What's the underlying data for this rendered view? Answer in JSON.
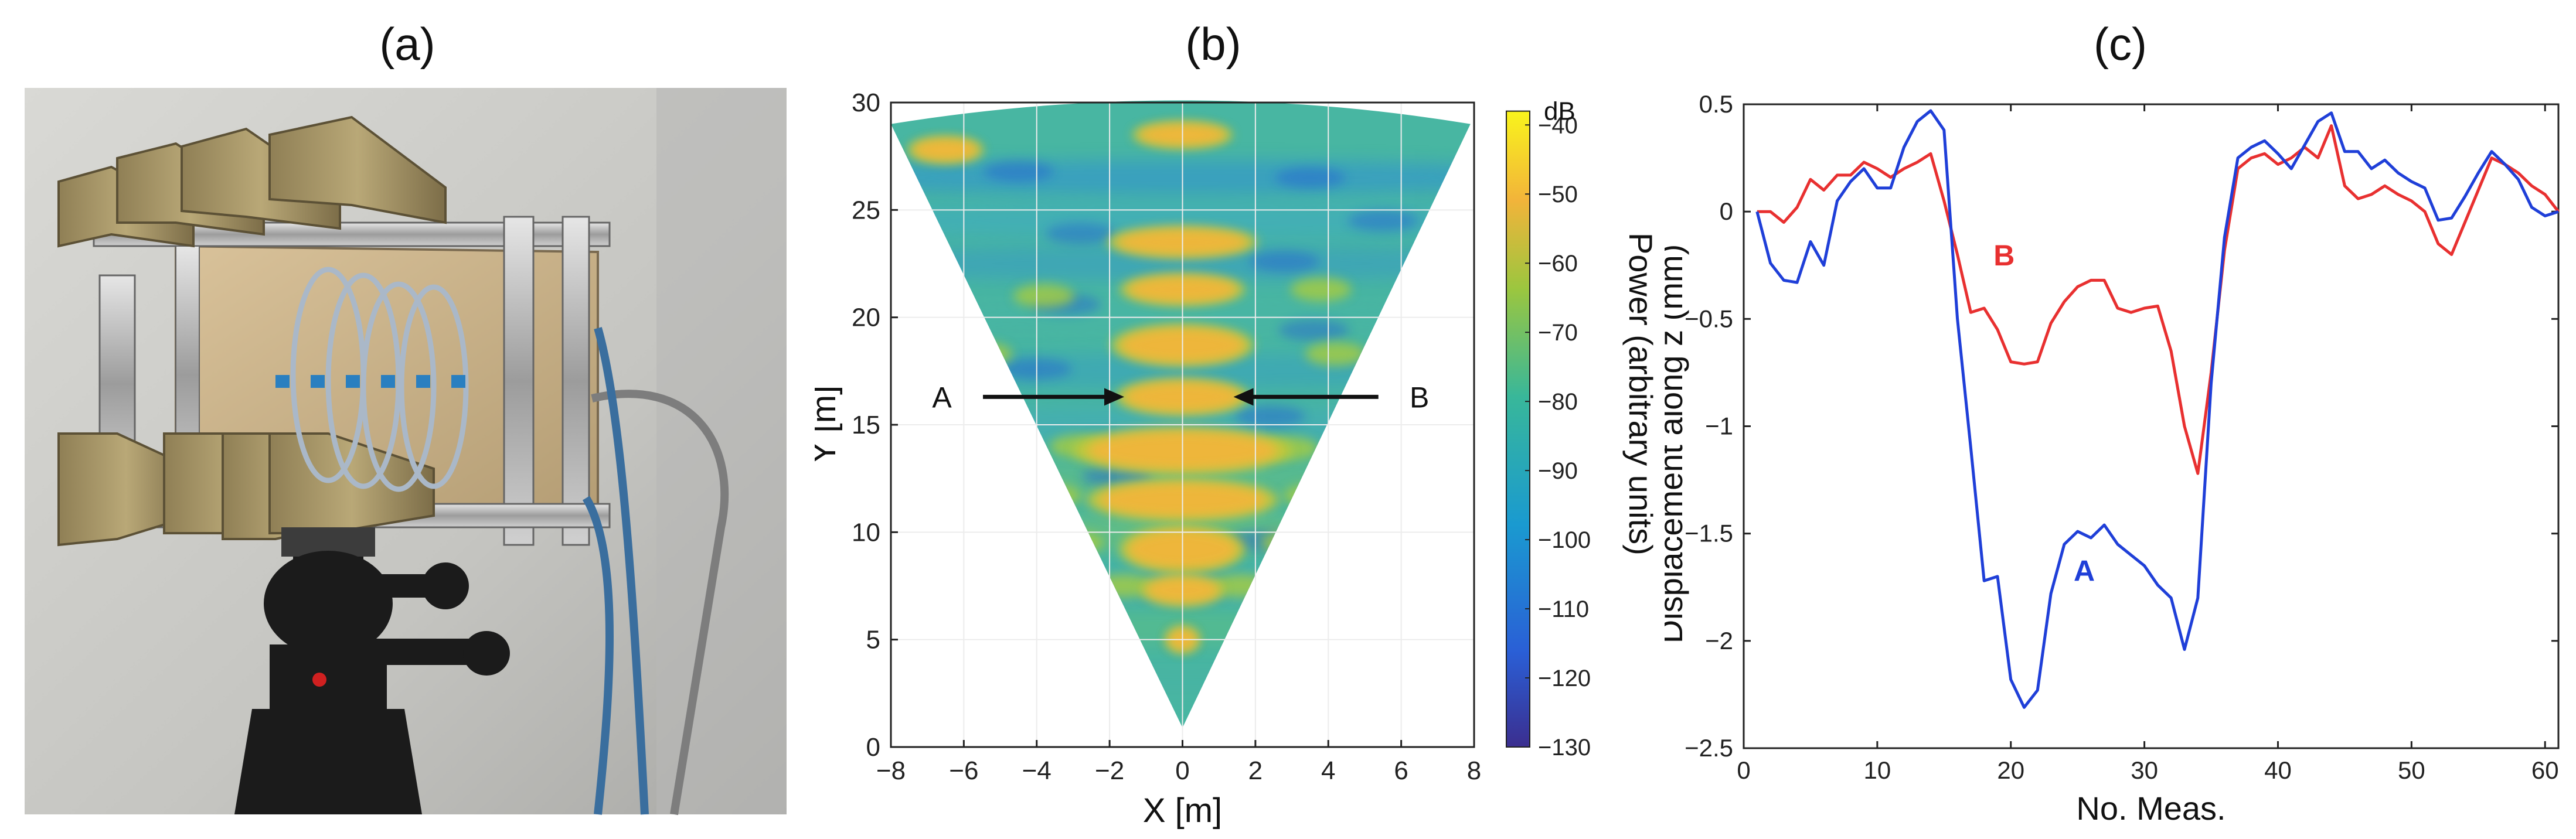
{
  "panels": {
    "a": "(a)",
    "b": "(b)",
    "c": "(c)"
  },
  "photo": {
    "description_name": "radar-sensor-photo"
  },
  "chart_data": [
    {
      "type": "heatmap",
      "title": "(b)",
      "xlabel": "X [m]",
      "ylabel": "Y [m]",
      "xlim": [
        -8,
        8
      ],
      "ylim": [
        0,
        30
      ],
      "xticks": [
        -8,
        -6,
        -4,
        -2,
        0,
        2,
        4,
        6,
        8
      ],
      "yticks": [
        0,
        5,
        10,
        15,
        20,
        25,
        30
      ],
      "colorbar": {
        "label": "Power (arbitrary units)",
        "unit": "dB",
        "range": [
          -130,
          -38
        ],
        "ticks": [
          -40,
          -50,
          -60,
          -70,
          -80,
          -90,
          -100,
          -110,
          -120,
          -130
        ]
      },
      "annotations": [
        {
          "text": "A",
          "x": -6.6,
          "y": 16.3,
          "arrow_to": [
            -1.6,
            16.3
          ]
        },
        {
          "text": "B",
          "x": 6.5,
          "y": 16.3,
          "arrow_to": [
            1.4,
            16.3
          ]
        }
      ],
      "hot_spots": [
        {
          "x": 0,
          "y": 28.5,
          "rx": 1.2,
          "ry": 0.5
        },
        {
          "x": -6.5,
          "y": 27.8,
          "rx": 0.9,
          "ry": 0.5
        },
        {
          "x": 0,
          "y": 23.5,
          "rx": 1.8,
          "ry": 0.6
        },
        {
          "x": 0,
          "y": 21.3,
          "rx": 1.5,
          "ry": 0.6
        },
        {
          "x": 0,
          "y": 18.7,
          "rx": 1.7,
          "ry": 0.8
        },
        {
          "x": 0,
          "y": 16.3,
          "rx": 1.6,
          "ry": 0.7
        },
        {
          "x": 0,
          "y": 13.8,
          "rx": 2.6,
          "ry": 0.9
        },
        {
          "x": 0,
          "y": 11.5,
          "rx": 2.3,
          "ry": 0.8
        },
        {
          "x": 0,
          "y": 9.2,
          "rx": 1.5,
          "ry": 0.9
        },
        {
          "x": 0,
          "y": 7.3,
          "rx": 1.0,
          "ry": 0.6
        },
        {
          "x": 0,
          "y": 5.0,
          "rx": 0.4,
          "ry": 0.5
        }
      ]
    },
    {
      "type": "line",
      "title": "(c)",
      "xlabel": "No. Meas.",
      "ylabel": "Displacement along z (mm)",
      "xlim": [
        0,
        61
      ],
      "ylim": [
        -2.5,
        0.5
      ],
      "xticks": [
        0,
        10,
        20,
        30,
        40,
        50,
        60
      ],
      "yticks": [
        0.5,
        0,
        -0.5,
        -1,
        -1.5,
        -2,
        -2.5
      ],
      "series": [
        {
          "name": "A",
          "color": "#1f3fd8",
          "label_at": [
            25.5,
            -1.72
          ],
          "x": [
            1,
            2,
            3,
            4,
            5,
            6,
            7,
            8,
            9,
            10,
            11,
            12,
            13,
            14,
            15,
            16,
            17,
            18,
            19,
            20,
            21,
            22,
            23,
            24,
            25,
            26,
            27,
            28,
            29,
            30,
            31,
            32,
            33,
            34,
            35,
            36,
            37,
            38,
            39,
            40,
            41,
            42,
            43,
            44,
            45,
            46,
            47,
            48,
            49,
            50,
            51,
            52,
            53,
            54,
            55,
            56,
            57,
            58,
            59,
            60,
            61
          ],
          "y": [
            0.0,
            -0.24,
            -0.32,
            -0.33,
            -0.14,
            -0.25,
            0.05,
            0.14,
            0.2,
            0.11,
            0.11,
            0.3,
            0.42,
            0.47,
            0.38,
            -0.5,
            -1.1,
            -1.72,
            -1.7,
            -2.18,
            -2.31,
            -2.23,
            -1.78,
            -1.55,
            -1.49,
            -1.52,
            -1.46,
            -1.55,
            -1.6,
            -1.65,
            -1.74,
            -1.8,
            -2.04,
            -1.8,
            -0.8,
            -0.12,
            0.25,
            0.3,
            0.33,
            0.27,
            0.2,
            0.31,
            0.42,
            0.46,
            0.28,
            0.28,
            0.2,
            0.24,
            0.18,
            0.14,
            0.11,
            -0.04,
            -0.03,
            0.07,
            0.18,
            0.28,
            0.22,
            0.15,
            0.02,
            -0.02,
            0.0
          ]
        },
        {
          "name": "B",
          "color": "#e83030",
          "label_at": [
            19.5,
            -0.25
          ],
          "x": [
            1,
            2,
            3,
            4,
            5,
            6,
            7,
            8,
            9,
            10,
            11,
            12,
            13,
            14,
            15,
            16,
            17,
            18,
            19,
            20,
            21,
            22,
            23,
            24,
            25,
            26,
            27,
            28,
            29,
            30,
            31,
            32,
            33,
            34,
            35,
            36,
            37,
            38,
            39,
            40,
            41,
            42,
            43,
            44,
            45,
            46,
            47,
            48,
            49,
            50,
            51,
            52,
            53,
            54,
            55,
            56,
            57,
            58,
            59,
            60,
            61
          ],
          "y": [
            0.0,
            0.0,
            -0.05,
            0.02,
            0.15,
            0.1,
            0.17,
            0.17,
            0.23,
            0.2,
            0.16,
            0.2,
            0.23,
            0.27,
            0.05,
            -0.2,
            -0.47,
            -0.45,
            -0.55,
            -0.7,
            -0.71,
            -0.7,
            -0.52,
            -0.42,
            -0.35,
            -0.32,
            -0.32,
            -0.45,
            -0.47,
            -0.45,
            -0.44,
            -0.65,
            -1.0,
            -1.22,
            -0.75,
            -0.18,
            0.2,
            0.25,
            0.27,
            0.22,
            0.25,
            0.3,
            0.25,
            0.4,
            0.12,
            0.06,
            0.08,
            0.12,
            0.08,
            0.05,
            0.0,
            -0.15,
            -0.2,
            -0.05,
            0.1,
            0.25,
            0.22,
            0.18,
            0.12,
            0.08,
            0.0
          ]
        }
      ]
    }
  ]
}
